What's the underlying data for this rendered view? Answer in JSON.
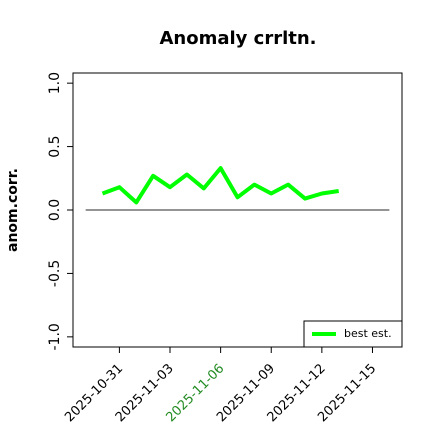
{
  "chart_data": {
    "type": "line",
    "title": "Anomaly crrltn.",
    "y_label": "anom.corr.",
    "x": [
      "2025-10-30",
      "2025-10-31",
      "2025-11-01",
      "2025-11-02",
      "2025-11-03",
      "2025-11-04",
      "2025-11-05",
      "2025-11-06",
      "2025-11-07",
      "2025-11-08",
      "2025-11-09",
      "2025-11-10",
      "2025-11-11",
      "2025-11-12",
      "2025-11-13"
    ],
    "series": [
      {
        "name": "best est.",
        "color": "#00ff00",
        "values": [
          0.13,
          0.18,
          0.06,
          0.27,
          0.18,
          0.28,
          0.17,
          0.33,
          0.1,
          0.2,
          0.13,
          0.2,
          0.09,
          0.13,
          0.15
        ]
      }
    ],
    "xlim": [
      "2025-10-28T06:00",
      "2025-11-16T18:00"
    ],
    "xticks": [
      "2025-10-31",
      "2025-11-03",
      "2025-11-06",
      "2025-11-09",
      "2025-11-12",
      "2025-11-15"
    ],
    "highlight_xtick": "2025-11-06",
    "highlight_color": "#228b22",
    "ylim": [
      -1.08,
      1.08
    ],
    "yticks": [
      {
        "value": -1,
        "label": "-1.0"
      },
      {
        "value": -0.5,
        "label": "-0.5"
      },
      {
        "value": 0,
        "label": "0.0"
      },
      {
        "value": 0.5,
        "label": "0.5"
      },
      {
        "value": 1,
        "label": "1.0"
      }
    ],
    "reference_line": {
      "value": 0,
      "x": [
        "2025-10-29",
        "2025-11-16"
      ],
      "color": "#555555"
    },
    "legend": "bottomright"
  }
}
